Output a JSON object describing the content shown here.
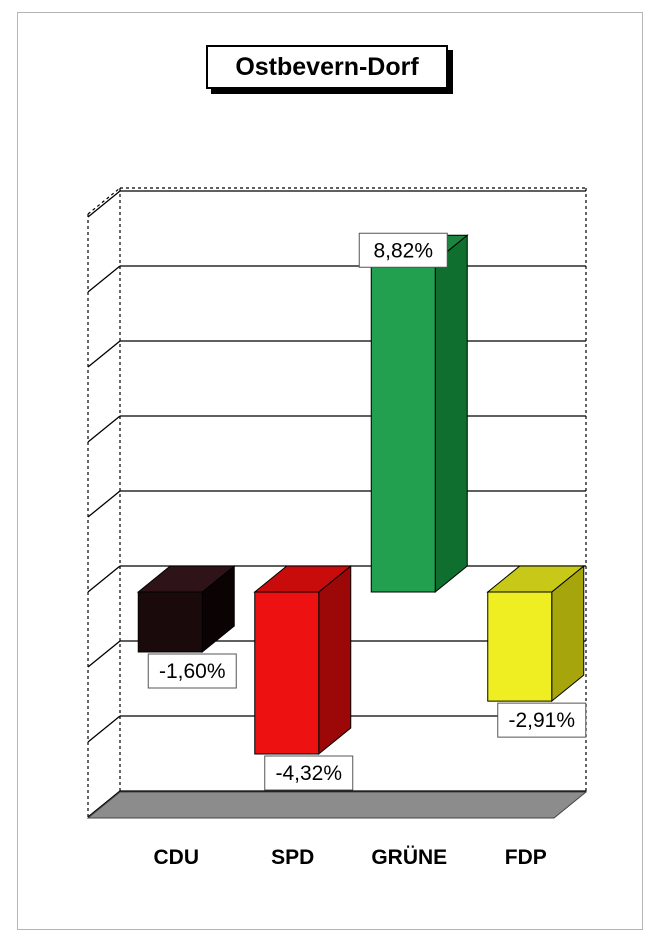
{
  "chart_data": {
    "type": "bar",
    "title": "Ostbevern-Dorf",
    "categories": [
      "CDU",
      "SPD",
      "GRÜNE",
      "FDP"
    ],
    "values": [
      -1.6,
      -4.32,
      8.82,
      -2.91
    ],
    "value_labels": [
      "-1,60%",
      "-4,32%",
      "8,82%",
      "-2,91%"
    ],
    "colors": [
      "#1a0a0c",
      "#ee1111",
      "#22a050",
      "#eeee22"
    ],
    "side_colors": [
      "#0a0203",
      "#9c0808",
      "#0f6f2e",
      "#a6a60c"
    ],
    "top_colors": [
      "#2e1418",
      "#c80c0c",
      "#1a8440",
      "#c8c818"
    ],
    "ylim": [
      -6,
      10
    ],
    "grid": true,
    "legend": "none",
    "three_d": true,
    "floor_color": "#8c8c8c"
  }
}
